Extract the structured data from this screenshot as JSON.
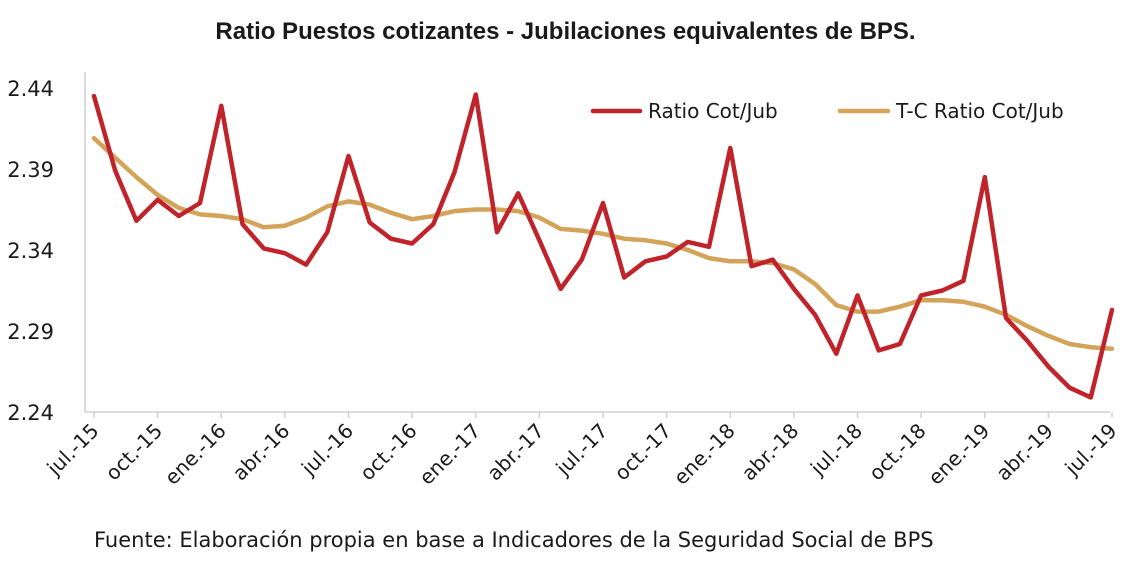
{
  "chart_data": {
    "type": "line",
    "title": "Ratio Puestos cotizantes - Jubilaciones  equivalentes de BPS.",
    "source": "Fuente: Elaboración propia en base a Indicadores de la Seguridad Social de BPS",
    "xlabel": "",
    "ylabel": "",
    "ylim": [
      2.24,
      2.44
    ],
    "yticks": [
      "2.44",
      "2.39",
      "2.34",
      "2.29",
      "2.24"
    ],
    "ytick_values": [
      2.44,
      2.39,
      2.34,
      2.29,
      2.24
    ],
    "grid": false,
    "legend_position": "top-right",
    "x": [
      "jul.-15",
      "ago.-15",
      "sep.-15",
      "oct.-15",
      "nov.-15",
      "dic.-15",
      "ene.-16",
      "feb.-16",
      "mar.-16",
      "abr.-16",
      "may.-16",
      "jun.-16",
      "jul.-16",
      "ago.-16",
      "sep.-16",
      "oct.-16",
      "nov.-16",
      "dic.-16",
      "ene.-17",
      "feb.-17",
      "mar.-17",
      "abr.-17",
      "may.-17",
      "jun.-17",
      "jul.-17",
      "ago.-17",
      "sep.-17",
      "oct.-17",
      "nov.-17",
      "dic.-17",
      "ene.-18",
      "feb.-18",
      "mar.-18",
      "abr.-18",
      "may.-18",
      "jun.-18",
      "jul.-18",
      "ago.-18",
      "sep.-18",
      "oct.-18",
      "nov.-18",
      "dic.-18",
      "ene.-19",
      "feb.-19",
      "mar.-19",
      "abr.-19",
      "may.-19",
      "jun.-19",
      "jul.-19"
    ],
    "xtick_labels": [
      "jul.-15",
      "oct.-15",
      "ene.-16",
      "abr.-16",
      "jul.-16",
      "oct.-16",
      "ene.-17",
      "abr.-17",
      "jul.-17",
      "oct.-17",
      "ene.-18",
      "abr.-18",
      "jul.-18",
      "oct.-18",
      "ene.-19",
      "abr.-19",
      "jul.-19"
    ],
    "xtick_indices": [
      0,
      3,
      6,
      9,
      12,
      15,
      18,
      21,
      24,
      27,
      30,
      33,
      36,
      39,
      42,
      45,
      48
    ],
    "series": [
      {
        "name": "Ratio Cot/Jub",
        "color": "#c0242b",
        "values": [
          2.435,
          2.389,
          2.358,
          2.371,
          2.361,
          2.369,
          2.429,
          2.356,
          2.341,
          2.338,
          2.331,
          2.351,
          2.398,
          2.357,
          2.347,
          2.344,
          2.356,
          2.388,
          2.436,
          2.351,
          2.375,
          2.346,
          2.316,
          2.334,
          2.369,
          2.323,
          2.333,
          2.336,
          2.345,
          2.342,
          2.403,
          2.33,
          2.334,
          2.316,
          2.3,
          2.276,
          2.312,
          2.278,
          2.282,
          2.312,
          2.315,
          2.321,
          2.385,
          2.298,
          2.284,
          2.268,
          2.255,
          2.249,
          2.303
        ]
      },
      {
        "name": "T-C Ratio Cot/Jub",
        "color": "#d4a35a",
        "values": [
          2.409,
          2.397,
          2.385,
          2.374,
          2.366,
          2.362,
          2.361,
          2.359,
          2.354,
          2.355,
          2.36,
          2.367,
          2.37,
          2.368,
          2.363,
          2.359,
          2.361,
          2.364,
          2.365,
          2.365,
          2.364,
          2.36,
          2.353,
          2.352,
          2.35,
          2.347,
          2.346,
          2.344,
          2.34,
          2.335,
          2.333,
          2.333,
          2.332,
          2.328,
          2.319,
          2.306,
          2.302,
          2.302,
          2.305,
          2.309,
          2.309,
          2.308,
          2.305,
          2.3,
          2.293,
          2.287,
          2.282,
          2.28,
          2.279
        ]
      }
    ]
  }
}
